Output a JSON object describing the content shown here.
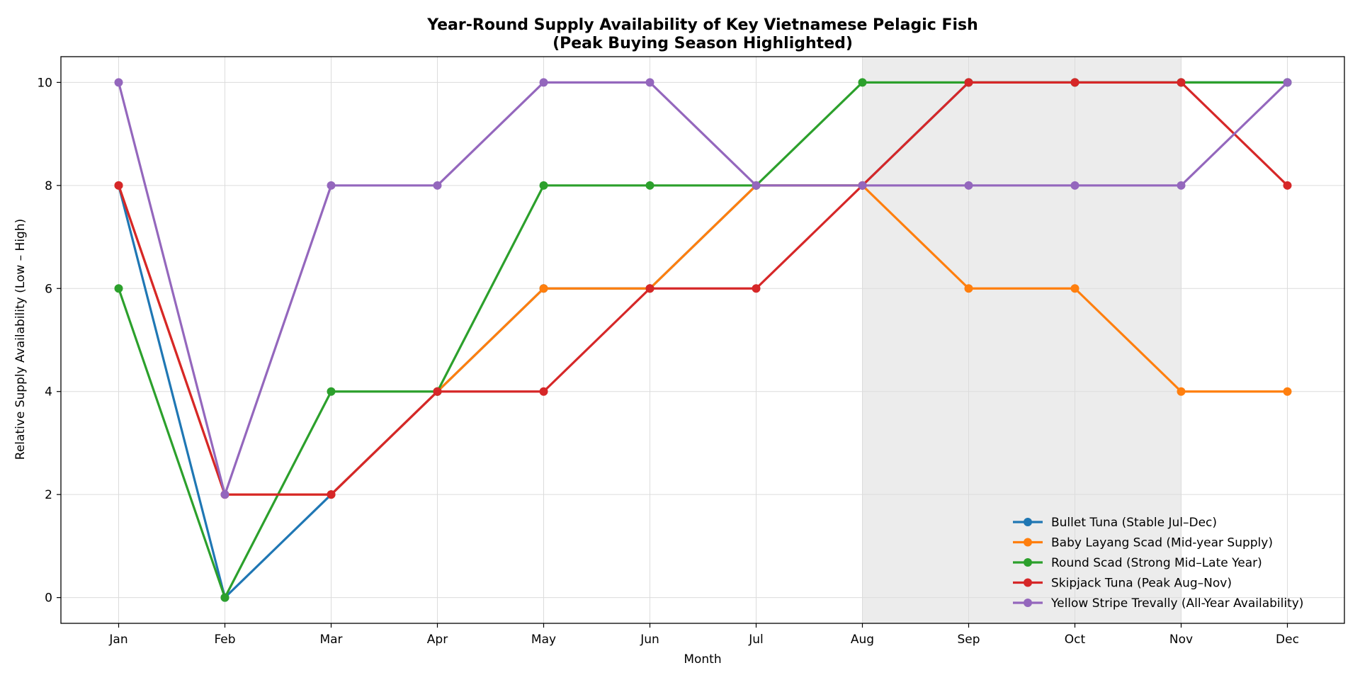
{
  "chart_data": {
    "type": "line",
    "title_line1": "Year-Round Supply Availability of Key Vietnamese Pelagic Fish",
    "title_line2": "(Peak Buying Season Highlighted)",
    "xlabel": "Month",
    "ylabel": "Relative Supply Availability (Low – High)",
    "categories": [
      "Jan",
      "Feb",
      "Mar",
      "Apr",
      "May",
      "Jun",
      "Jul",
      "Aug",
      "Sep",
      "Oct",
      "Nov",
      "Dec"
    ],
    "ylim": [
      -0.5,
      10.5
    ],
    "yticks": [
      0,
      2,
      4,
      6,
      8,
      10
    ],
    "grid": true,
    "legend_position": "lower-right",
    "highlight_region": {
      "from": "Aug",
      "to": "Nov",
      "color": "#ececec"
    },
    "series": [
      {
        "name": "Bullet Tuna (Stable Jul–Dec)",
        "color": "#1f77b4",
        "values": [
          8,
          0,
          2,
          4,
          6,
          6,
          8,
          8,
          10,
          10,
          10,
          10
        ]
      },
      {
        "name": "Baby Layang Scad (Mid-year Supply)",
        "color": "#ff7f0e",
        "values": [
          8,
          2,
          2,
          4,
          6,
          6,
          8,
          8,
          6,
          6,
          4,
          4
        ]
      },
      {
        "name": "Round Scad (Strong Mid–Late Year)",
        "color": "#2ca02c",
        "values": [
          6,
          0,
          4,
          4,
          8,
          8,
          8,
          10,
          10,
          10,
          10,
          10
        ]
      },
      {
        "name": "Skipjack Tuna (Peak Aug–Nov)",
        "color": "#d62728",
        "values": [
          8,
          2,
          2,
          4,
          4,
          6,
          6,
          8,
          10,
          10,
          10,
          8
        ]
      },
      {
        "name": "Yellow Stripe Trevally (All-Year Availability)",
        "color": "#9467bd",
        "values": [
          10,
          2,
          8,
          8,
          10,
          10,
          8,
          8,
          8,
          8,
          8,
          10
        ]
      }
    ]
  }
}
